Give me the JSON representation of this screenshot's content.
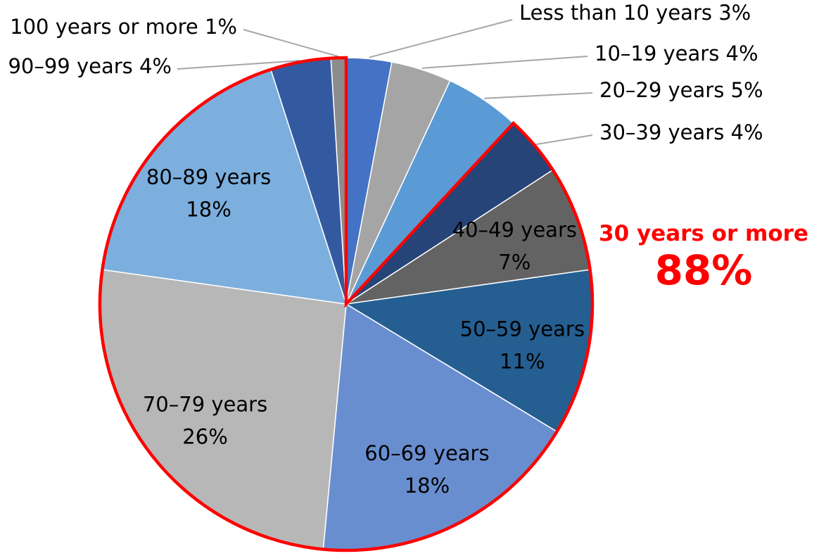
{
  "chart_data": {
    "type": "pie",
    "title": "",
    "start": "top, clockwise",
    "slices": [
      {
        "label": "Less than 10 years",
        "value": 3,
        "value_label": "3%",
        "color": "#4472c4",
        "label_style": "outside"
      },
      {
        "label": "10–19 years",
        "value": 4,
        "value_label": "4%",
        "color": "#a5a5a5",
        "label_style": "outside"
      },
      {
        "label": "20–29 years",
        "value": 5,
        "value_label": "5%",
        "color": "#5b9bd5",
        "label_style": "outside"
      },
      {
        "label": "30–39 years",
        "value": 4,
        "value_label": "4%",
        "color": "#264478",
        "label_style": "outside"
      },
      {
        "label": "40–49 years",
        "value": 7,
        "value_label": "7%",
        "color": "#636363",
        "label_style": "inside"
      },
      {
        "label": "50–59 years",
        "value": 11,
        "value_label": "11%",
        "color": "#255e91",
        "label_style": "inside"
      },
      {
        "label": "60–69 years",
        "value": 18,
        "value_label": "18%",
        "color": "#698ed0",
        "label_style": "inside"
      },
      {
        "label": "70–79 years",
        "value": 26,
        "value_label": "26%",
        "color": "#b7b7b7",
        "label_style": "inside"
      },
      {
        "label": "80–89 years",
        "value": 18,
        "value_label": "18%",
        "color": "#7cafdd",
        "label_style": "inside"
      },
      {
        "label": "90–99 years",
        "value": 4,
        "value_label": "4%",
        "color": "#335aa1",
        "label_style": "outside"
      },
      {
        "label": "100 years or more",
        "value": 1,
        "value_label": "1%",
        "color": "#8c8c8c",
        "label_style": "outside"
      }
    ],
    "highlight": {
      "label": "30 years or more",
      "value_label": "88%",
      "slices_included": [
        "30–39 years",
        "40–49 years",
        "50–59 years",
        "60–69 years",
        "70–79 years",
        "80–89 years",
        "90–99 years",
        "100 years or more"
      ],
      "color": "#ff0000"
    },
    "leader_line_color": "#a6a6a6"
  }
}
